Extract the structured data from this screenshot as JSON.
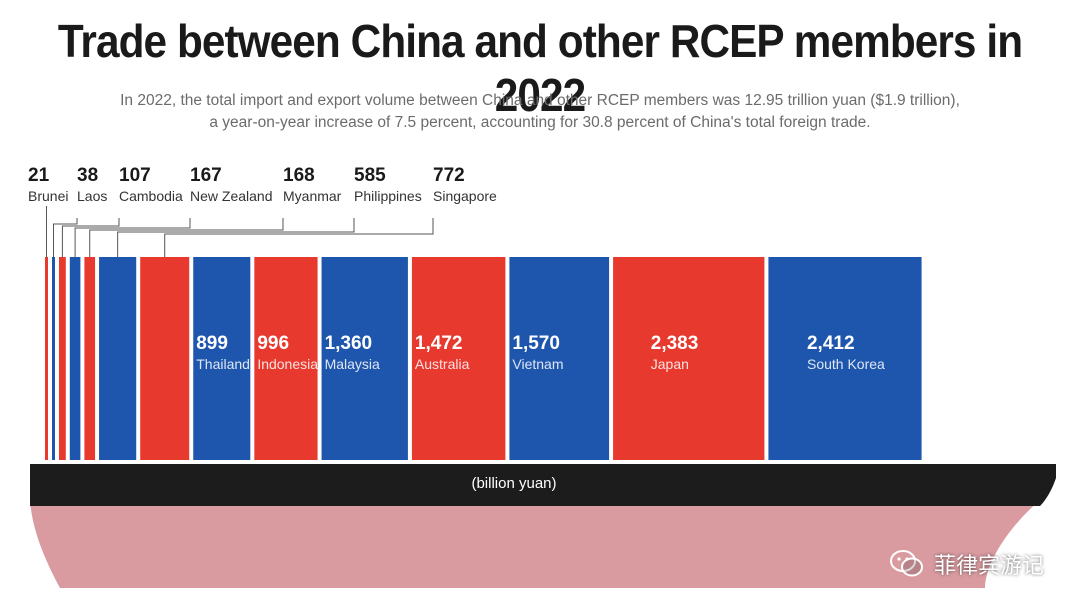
{
  "chart_data": {
    "type": "bar",
    "title": "Trade between China and other RCEP members in 2022",
    "subtitle_lines": [
      "In 2022, the total import and export volume between China and other RCEP members was 12.95 trillion yuan ($1.9 trillion),",
      "a year-on-year increase of 7.5 percent, accounting for 30.8 percent of China's total foreign trade."
    ],
    "unit_label": "(billion yuan)",
    "categories": [
      "Brunei",
      "Laos",
      "Cambodia",
      "New Zealand",
      "Myanmar",
      "Philippines",
      "Singapore",
      "Thailand",
      "Indonesia",
      "Malaysia",
      "Australia",
      "Vietnam",
      "Japan",
      "South Korea"
    ],
    "values": [
      21,
      38,
      107,
      167,
      168,
      585,
      772,
      899,
      996,
      1360,
      1472,
      1570,
      2383,
      2412
    ],
    "value_labels": [
      "21",
      "38",
      "107",
      "167",
      "168",
      "585",
      "772",
      "899",
      "996",
      "1,360",
      "1,472",
      "1,570",
      "2,383",
      "2,412"
    ],
    "colors": {
      "red": "#e8392f",
      "blue": "#1f56ad",
      "hull": "#1c1c1c",
      "hull_bottom": "#d99ba0"
    }
  },
  "watermark": {
    "text": "菲律宾游记",
    "icon": "wechat-icon"
  }
}
